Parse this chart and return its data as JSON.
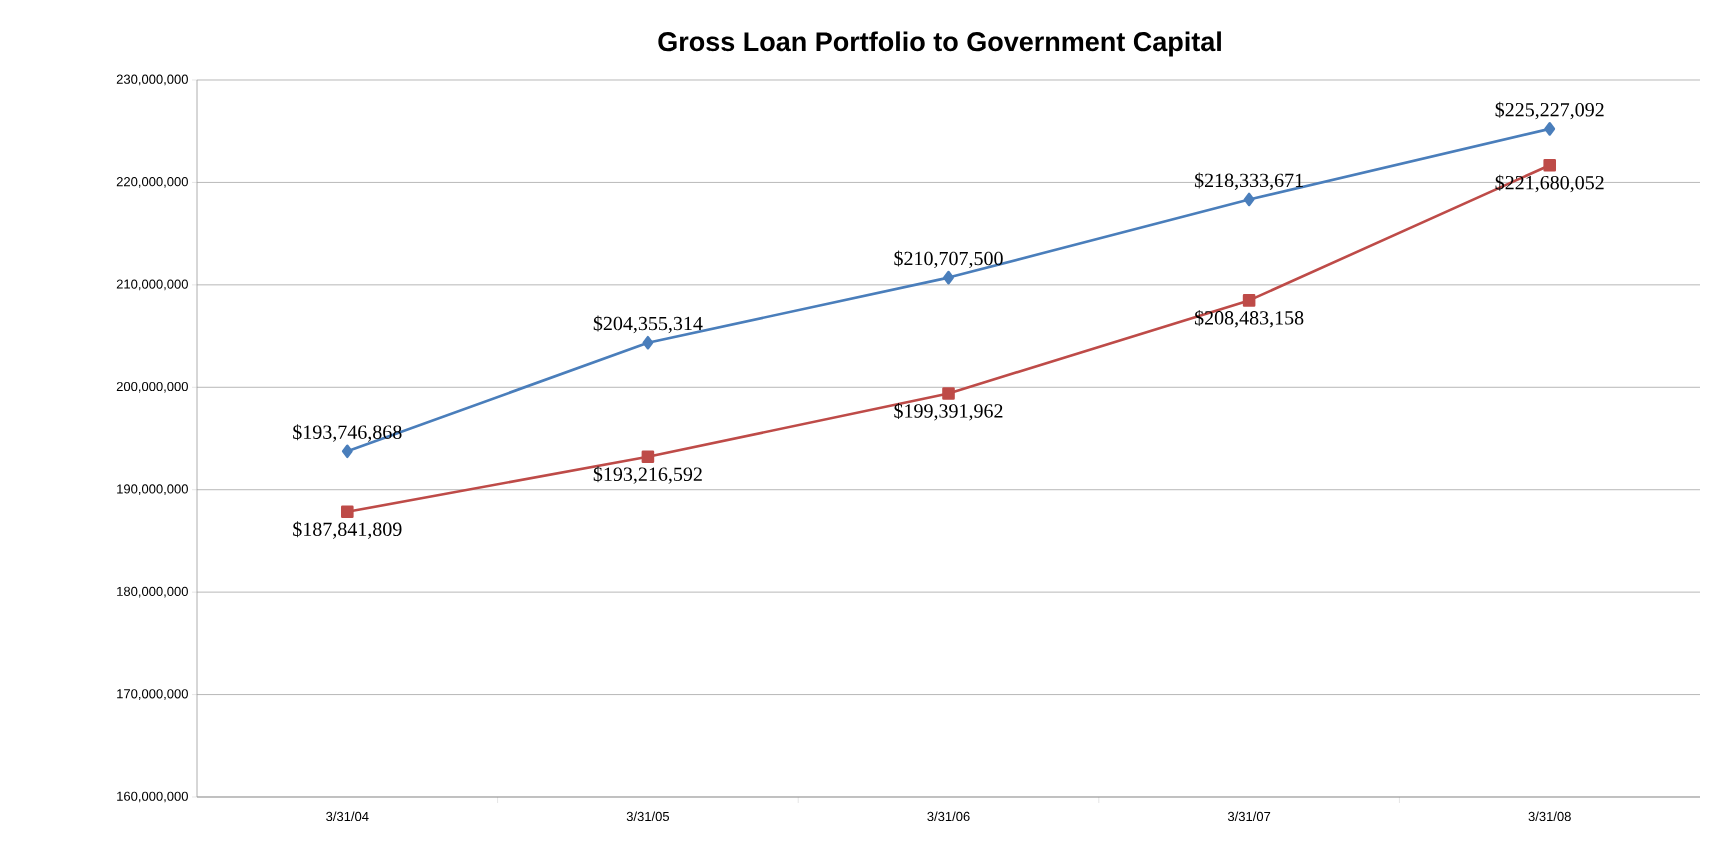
{
  "chart_data": {
    "type": "line",
    "title": "Gross Loan Portfolio to Government Capital",
    "categories": [
      "3/31/04",
      "3/31/05",
      "3/31/06",
      "3/31/07",
      "3/31/08"
    ],
    "series": [
      {
        "color": "#4a7ebb",
        "marker": "diamond",
        "values": [
          193746868,
          204355314,
          210707500,
          218333671,
          225227092
        ],
        "value_labels": [
          "$193,746,868",
          "$204,355,314",
          "$210,707,500",
          "$218,333,671",
          "$225,227,092"
        ]
      },
      {
        "color": "#be4b48",
        "marker": "square",
        "values": [
          187841809,
          193216592,
          199391962,
          208483158,
          221680052
        ],
        "value_labels": [
          "$187,841,809",
          "$193,216,592",
          "$199,391,962",
          "$208,483,158",
          "$221,680,052"
        ]
      }
    ],
    "ylim": [
      160000000,
      230000000
    ],
    "yticks": [
      {
        "value": 160000000,
        "label": "160,000,000"
      },
      {
        "value": 170000000,
        "label": "170,000,000"
      },
      {
        "value": 180000000,
        "label": "180,000,000"
      },
      {
        "value": 190000000,
        "label": "190,000,000"
      },
      {
        "value": 200000000,
        "label": "200,000,000"
      },
      {
        "value": 210000000,
        "label": "210,000,000"
      },
      {
        "value": 220000000,
        "label": "220,000,000"
      },
      {
        "value": 230000000,
        "label": "230,000,000"
      }
    ],
    "grid": "y"
  }
}
